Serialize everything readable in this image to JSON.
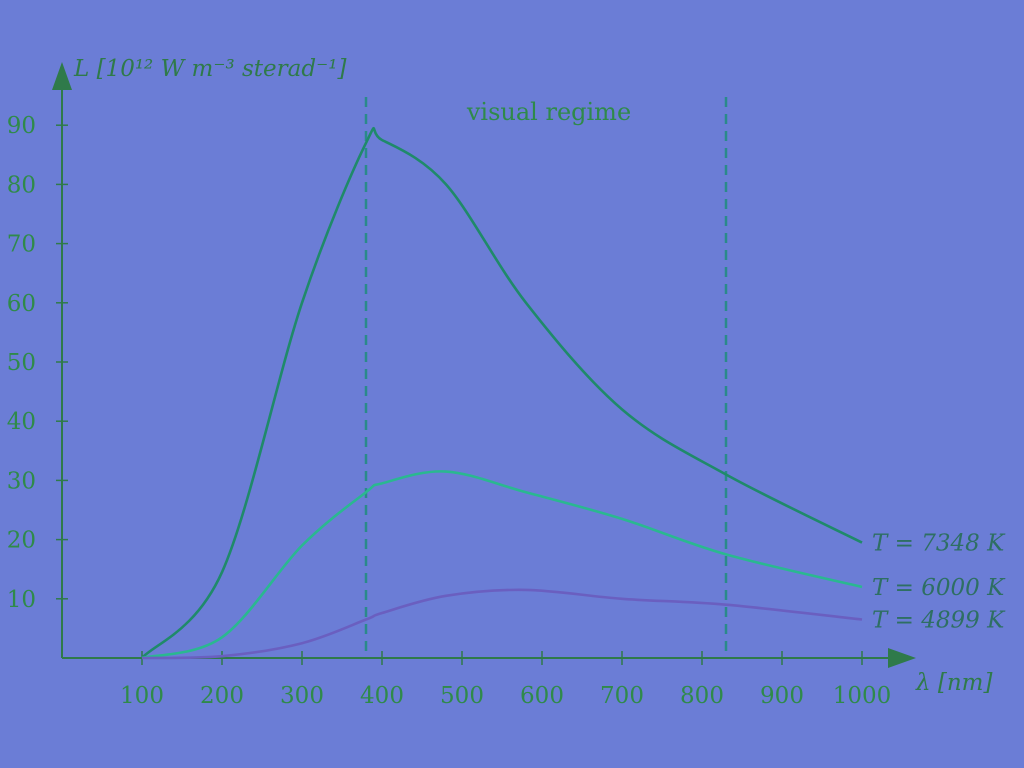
{
  "chart_data": {
    "type": "line",
    "title": "",
    "xlabel": "λ [nm]",
    "ylabel": "L [10¹² W m⁻³ sterad⁻¹]",
    "xlim": [
      0,
      1000
    ],
    "ylim": [
      0,
      95
    ],
    "x_ticks": [
      100,
      200,
      300,
      400,
      500,
      600,
      700,
      800,
      900,
      1000
    ],
    "y_ticks": [
      10,
      20,
      30,
      40,
      50,
      60,
      70,
      80,
      90
    ],
    "grid": false,
    "annotation": "visual regime",
    "visual_regime_bounds": [
      380,
      830
    ],
    "x": [
      100,
      200,
      300,
      380,
      400,
      480,
      580,
      700,
      830,
      1000
    ],
    "series": [
      {
        "name": "T = 7348 K",
        "color": "#1f8a6a",
        "values": [
          0.02,
          14.5,
          60.0,
          87.0,
          87.5,
          80.0,
          60.0,
          42.0,
          31.0,
          19.5
        ]
      },
      {
        "name": "T = 6000 K",
        "color": "#2ab890",
        "values": [
          0.01,
          3.5,
          19.0,
          28.0,
          29.5,
          31.5,
          28.0,
          23.5,
          17.5,
          12.0
        ]
      },
      {
        "name": "T = 4899 K",
        "color": "#6a5fc0",
        "values": [
          0.0,
          0.3,
          2.5,
          6.5,
          7.6,
          10.5,
          11.5,
          10.0,
          9.0,
          6.5
        ]
      }
    ]
  }
}
